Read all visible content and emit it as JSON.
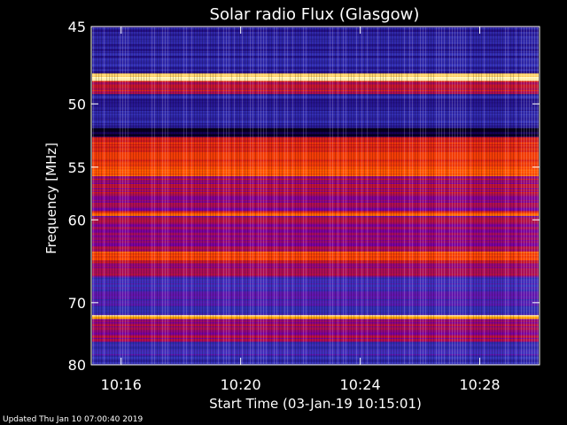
{
  "chart_data": {
    "type": "heatmap",
    "title": "Solar radio Flux (Glasgow)",
    "xlabel": "Start Time (03-Jan-19 10:15:01)",
    "ylabel": "Frequency [MHz]",
    "x_ticks": [
      "10:16",
      "10:20",
      "10:24",
      "10:28"
    ],
    "x_tick_minutes": [
      1,
      5,
      9,
      13
    ],
    "x_range_minutes": [
      0,
      15
    ],
    "y_ticks": [
      45,
      50,
      55,
      60,
      70,
      80
    ],
    "y_range": [
      45,
      80
    ],
    "y_scale": "reciprocal",
    "colormap": [
      "#000000",
      "#1a0070",
      "#3838c0",
      "#7a00a0",
      "#d01a1a",
      "#ff4a00",
      "#ffa000",
      "#ffffd0"
    ],
    "frequency_bands": [
      {
        "from": 45,
        "to": 47.9,
        "level": 0.22
      },
      {
        "from": 47.9,
        "to": 48.4,
        "level": 0.95
      },
      {
        "from": 48.4,
        "to": 49.3,
        "level": 0.55
      },
      {
        "from": 49.3,
        "to": 51.8,
        "level": 0.22
      },
      {
        "from": 51.8,
        "to": 52.5,
        "level": 0.06
      },
      {
        "from": 52.5,
        "to": 54.5,
        "level": 0.62
      },
      {
        "from": 54.5,
        "to": 55.8,
        "level": 0.72
      },
      {
        "from": 55.8,
        "to": 57.5,
        "level": 0.5
      },
      {
        "from": 57.5,
        "to": 59.2,
        "level": 0.48
      },
      {
        "from": 59.2,
        "to": 59.6,
        "level": 0.72
      },
      {
        "from": 59.6,
        "to": 63.5,
        "level": 0.46
      },
      {
        "from": 63.5,
        "to": 64.5,
        "level": 0.7
      },
      {
        "from": 64.5,
        "to": 66.5,
        "level": 0.5
      },
      {
        "from": 66.5,
        "to": 71.8,
        "level": 0.32
      },
      {
        "from": 71.8,
        "to": 72.4,
        "level": 0.9
      },
      {
        "from": 72.4,
        "to": 76,
        "level": 0.48
      },
      {
        "from": 76,
        "to": 80,
        "level": 0.3
      }
    ]
  },
  "footer": {
    "updated": "Updated Thu Jan 10 07:00:40 2019"
  }
}
